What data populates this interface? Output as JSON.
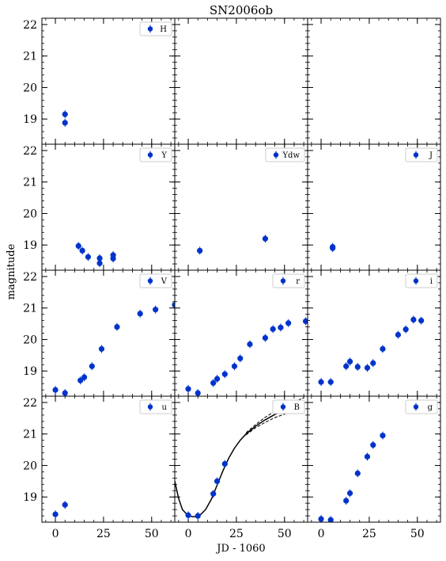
{
  "chart_data": {
    "type": "scatter",
    "title": "SN2006ob",
    "xlabel": "JD - 1060",
    "ylabel": "magnitude",
    "xlim": [
      -7,
      62
    ],
    "ylim": [
      22.2,
      18.2
    ],
    "y_inverted": true,
    "xticks": [
      0,
      25,
      50
    ],
    "yticks": [
      19,
      20,
      21,
      22
    ],
    "grid": false,
    "legend_placement": "top-right",
    "marker_color": "#0033cc",
    "fit_color": "#000000",
    "panels": [
      {
        "name": "H",
        "points": [
          [
            5,
            18.88
          ],
          [
            5,
            19.15
          ]
        ]
      },
      {
        "name": "",
        "points": []
      },
      {
        "name": "",
        "points": []
      },
      {
        "name": "Y",
        "points": [
          [
            12,
            18.97
          ],
          [
            14,
            18.82
          ],
          [
            17,
            18.62
          ],
          [
            23,
            18.58
          ],
          [
            23,
            18.42
          ],
          [
            30,
            18.57
          ],
          [
            30,
            18.68
          ]
        ]
      },
      {
        "name": "Ydw",
        "points": [
          [
            6,
            18.82
          ],
          [
            40,
            19.2
          ]
        ]
      },
      {
        "name": "J",
        "points": [
          [
            6,
            18.9
          ],
          [
            6,
            18.94
          ]
        ]
      },
      {
        "name": "V",
        "points": [
          [
            0,
            18.4
          ],
          [
            5,
            18.3
          ],
          [
            13,
            18.7
          ],
          [
            15,
            18.8
          ],
          [
            19,
            19.15
          ],
          [
            24,
            19.7
          ],
          [
            32,
            20.4
          ],
          [
            44,
            20.82
          ],
          [
            52,
            20.95
          ],
          [
            62,
            21.1
          ]
        ]
      },
      {
        "name": "r",
        "points": [
          [
            0,
            18.43
          ],
          [
            5,
            18.3
          ],
          [
            13,
            18.62
          ],
          [
            15,
            18.75
          ],
          [
            19,
            18.9
          ],
          [
            24,
            19.15
          ],
          [
            27,
            19.4
          ],
          [
            32,
            19.85
          ],
          [
            40,
            20.05
          ],
          [
            44,
            20.33
          ],
          [
            48,
            20.38
          ],
          [
            52,
            20.52
          ],
          [
            61,
            20.58
          ]
        ]
      },
      {
        "name": "i",
        "points": [
          [
            0,
            18.65
          ],
          [
            5,
            18.65
          ],
          [
            13,
            19.15
          ],
          [
            15,
            19.3
          ],
          [
            19,
            19.13
          ],
          [
            24,
            19.1
          ],
          [
            27,
            19.25
          ],
          [
            32,
            19.7
          ],
          [
            40,
            20.15
          ],
          [
            44,
            20.32
          ],
          [
            48,
            20.63
          ],
          [
            52,
            20.6
          ]
        ]
      },
      {
        "name": "u",
        "points": [
          [
            0,
            18.45
          ],
          [
            5,
            18.75
          ]
        ]
      },
      {
        "name": "B",
        "points": [
          [
            0,
            18.42
          ],
          [
            5,
            18.4
          ],
          [
            13,
            19.1
          ],
          [
            15,
            19.5
          ],
          [
            19,
            20.05
          ]
        ],
        "fit": [
          [
            -7,
            19.5
          ],
          [
            -5,
            18.95
          ],
          [
            -3,
            18.6
          ],
          [
            0,
            18.4
          ],
          [
            3,
            18.37
          ],
          [
            6,
            18.42
          ],
          [
            9,
            18.6
          ],
          [
            12,
            18.93
          ],
          [
            15,
            19.38
          ],
          [
            18,
            19.83
          ],
          [
            21,
            20.23
          ],
          [
            24,
            20.55
          ],
          [
            27,
            20.8
          ],
          [
            30,
            21.0
          ],
          [
            35,
            21.25
          ],
          [
            40,
            21.45
          ],
          [
            45,
            21.62
          ],
          [
            50,
            21.75
          ],
          [
            55,
            21.9
          ],
          [
            60,
            22.0
          ]
        ],
        "fit_upper": [
          [
            30,
            20.97
          ],
          [
            35,
            21.2
          ],
          [
            40,
            21.37
          ],
          [
            45,
            21.52
          ],
          [
            50,
            21.63
          ],
          [
            55,
            21.75
          ],
          [
            60,
            21.85
          ]
        ],
        "fit_lower": [
          [
            30,
            21.04
          ],
          [
            35,
            21.3
          ],
          [
            40,
            21.53
          ],
          [
            45,
            21.72
          ],
          [
            50,
            21.87
          ],
          [
            55,
            22.02
          ],
          [
            60,
            22.15
          ]
        ]
      },
      {
        "name": "g",
        "points": [
          [
            0,
            18.3
          ],
          [
            5,
            18.27
          ],
          [
            13,
            18.88
          ],
          [
            15,
            19.12
          ],
          [
            19,
            19.75
          ],
          [
            24,
            20.28
          ],
          [
            27,
            20.65
          ],
          [
            32,
            20.95
          ]
        ]
      }
    ]
  }
}
